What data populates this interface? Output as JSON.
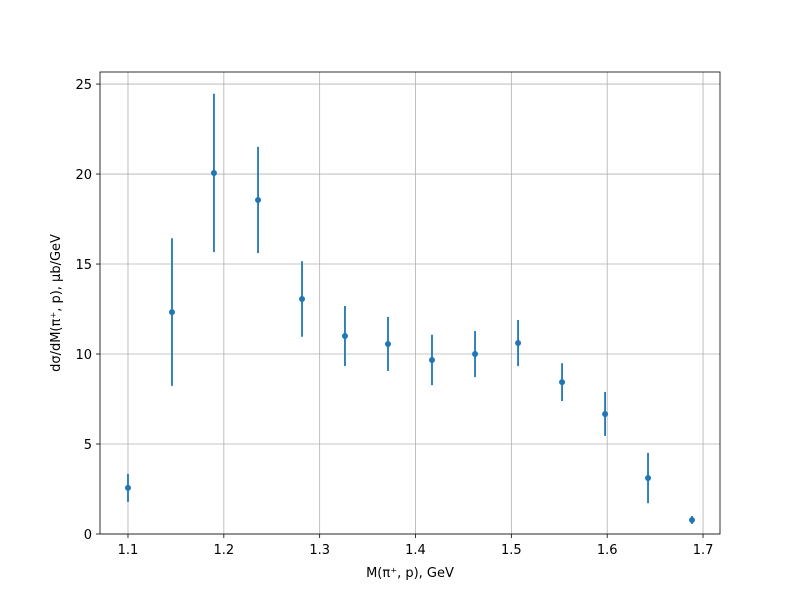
{
  "chart_data": {
    "type": "errorbar",
    "x_label": "M(π⁺, p), GeV",
    "y_label": "dσ/dM(π⁺, p), μb/GeV",
    "xlim": [
      1.0708,
      1.7177
    ],
    "ylim": [
      0,
      25.67
    ],
    "xticks": [
      {
        "value": 1.1,
        "label": "1.1"
      },
      {
        "value": 1.2,
        "label": "1.2"
      },
      {
        "value": 1.3,
        "label": "1.3"
      },
      {
        "value": 1.4,
        "label": "1.4"
      },
      {
        "value": 1.5,
        "label": "1.5"
      },
      {
        "value": 1.6,
        "label": "1.6"
      },
      {
        "value": 1.7,
        "label": "1.7"
      }
    ],
    "yticks": [
      0,
      5,
      10,
      15,
      20,
      25
    ],
    "grid": true,
    "series": [
      {
        "color": "#1f77b4",
        "x": [
          1.1,
          1.1459,
          1.1897,
          1.2357,
          1.2816,
          1.3264,
          1.3713,
          1.4172,
          1.4621,
          1.507,
          1.5529,
          1.5978,
          1.6426,
          1.6885
        ],
        "values": [
          2.56,
          12.33,
          20.06,
          18.56,
          13.06,
          11.0,
          10.56,
          9.67,
          10.0,
          10.61,
          8.44,
          6.67,
          3.11,
          0.78
        ],
        "errors": [
          0.78,
          4.1,
          4.4,
          2.95,
          2.1,
          1.67,
          1.5,
          1.4,
          1.28,
          1.28,
          1.05,
          1.22,
          1.4,
          0.22
        ]
      }
    ]
  }
}
